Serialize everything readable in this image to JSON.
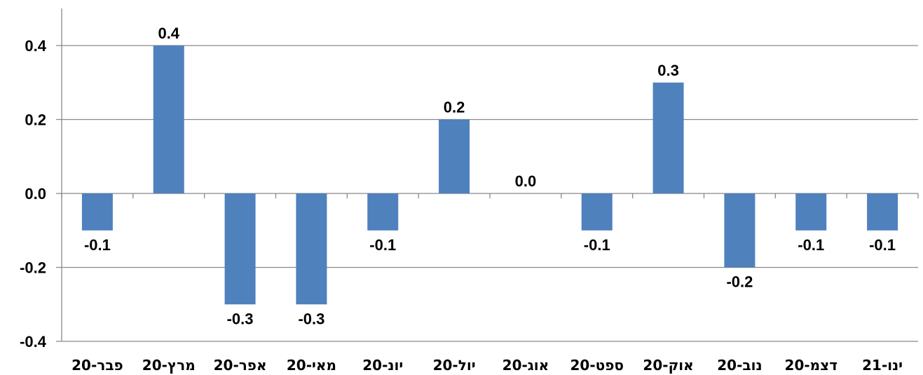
{
  "chart_data": {
    "type": "bar",
    "title": "",
    "xlabel": "",
    "ylabel": "",
    "categories": [
      "פבר-20",
      "מרץ-20",
      "אפר-20",
      "מאי-20",
      "יונ-20",
      "יול-20",
      "אוג-20",
      "ספט-20",
      "אוק-20",
      "נוב-20",
      "דצמ-20",
      "ינו-21"
    ],
    "values": [
      -0.1,
      0.4,
      -0.3,
      -0.3,
      -0.1,
      0.2,
      0.0,
      -0.1,
      0.3,
      -0.2,
      -0.1,
      -0.1
    ],
    "data_labels": [
      "-0.1",
      "0.4",
      "-0.3",
      "-0.3",
      "-0.1",
      "0.2",
      "0.0",
      "-0.1",
      "0.3",
      "-0.2",
      "-0.1",
      "-0.1"
    ],
    "ylim": [
      -0.4,
      0.4
    ],
    "yticks": [
      0.4,
      0.2,
      0.0,
      -0.2,
      -0.4
    ],
    "ytick_labels": [
      "0.4",
      "0.2",
      "0.0",
      "-0.2",
      "-0.4"
    ],
    "grid": true,
    "legend": "none",
    "bar_color": "#4f81bd",
    "grid_color": "#898989"
  }
}
